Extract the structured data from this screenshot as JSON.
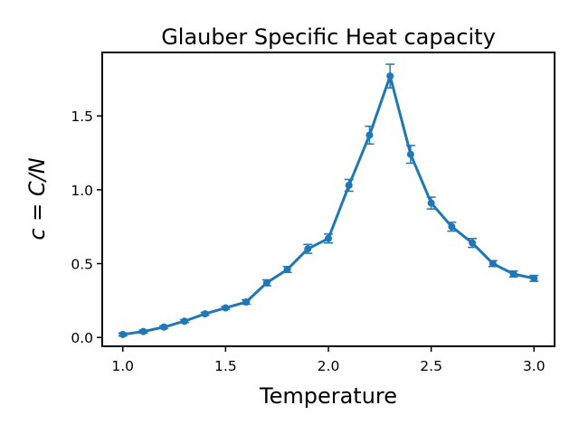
{
  "chart_data": {
    "type": "line",
    "title": "Glauber Specific Heat capacity",
    "xlabel": "Temperature",
    "ylabel": "c = C/N",
    "xlim": [
      0.9,
      3.1
    ],
    "ylim": [
      -0.06,
      1.93
    ],
    "xticks": [
      1.0,
      1.5,
      2.0,
      2.5,
      3.0
    ],
    "xtick_labels": [
      "1.0",
      "1.5",
      "2.0",
      "2.5",
      "3.0"
    ],
    "yticks": [
      0.0,
      0.5,
      1.0,
      1.5
    ],
    "ytick_labels": [
      "0.0",
      "0.5",
      "1.0",
      "1.5"
    ],
    "grid": false,
    "color": "#1f77b4",
    "series": [
      {
        "x": [
          1.0,
          1.1,
          1.2,
          1.3,
          1.4,
          1.5,
          1.6,
          1.7,
          1.8,
          1.9,
          2.0,
          2.1,
          2.2,
          2.3,
          2.4,
          2.5,
          2.6,
          2.7,
          2.8,
          2.9,
          3.0
        ],
        "y": [
          0.02,
          0.04,
          0.07,
          0.11,
          0.16,
          0.2,
          0.24,
          0.37,
          0.46,
          0.6,
          0.67,
          1.03,
          1.37,
          1.77,
          1.24,
          0.91,
          0.75,
          0.64,
          0.5,
          0.43,
          0.4
        ],
        "yerr": [
          0.01,
          0.01,
          0.01,
          0.01,
          0.01,
          0.01,
          0.015,
          0.02,
          0.02,
          0.03,
          0.03,
          0.04,
          0.06,
          0.08,
          0.06,
          0.04,
          0.03,
          0.03,
          0.02,
          0.02,
          0.02
        ]
      }
    ]
  }
}
